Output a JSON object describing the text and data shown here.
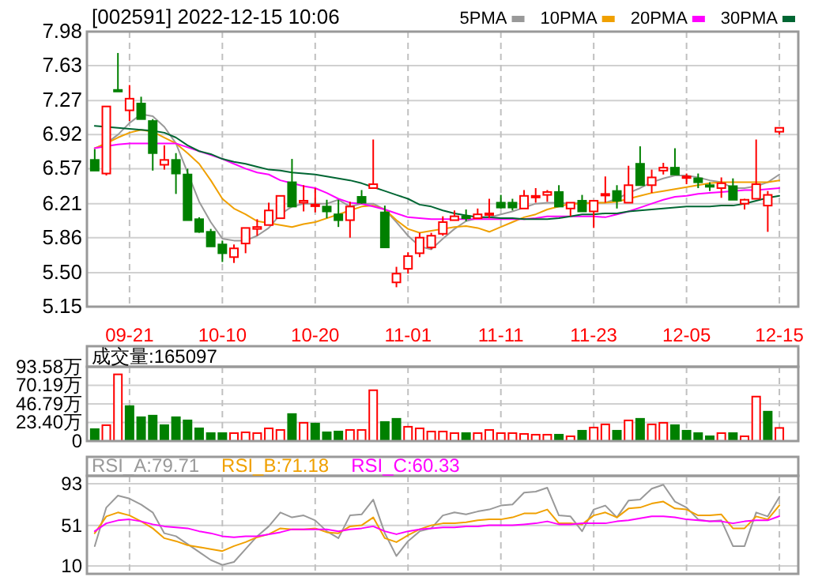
{
  "chart_data": [
    {
      "type": "candlestick",
      "title": "[002591] 2022-12-15 10:06",
      "categories": [
        null,
        null,
        null,
        "09-21",
        null,
        null,
        null,
        null,
        null,
        null,
        null,
        "10-10",
        null,
        null,
        null,
        null,
        null,
        null,
        null,
        "10-20",
        null,
        null,
        null,
        null,
        null,
        null,
        null,
        "11-01",
        null,
        null,
        null,
        null,
        null,
        null,
        null,
        "11-11",
        null,
        null,
        null,
        null,
        null,
        null,
        null,
        "11-23",
        null,
        null,
        null,
        null,
        null,
        null,
        null,
        "12-05",
        null,
        null,
        null,
        null,
        null,
        null,
        null,
        "12-15"
      ],
      "ohlc": [
        [
          6.66,
          6.77,
          6.55,
          6.55
        ],
        [
          6.52,
          7.21,
          6.5,
          7.21
        ],
        [
          7.38,
          7.76,
          7.37,
          7.37
        ],
        [
          7.17,
          7.43,
          7.06,
          7.29
        ],
        [
          7.24,
          7.31,
          7.08,
          7.08
        ],
        [
          7.06,
          7.08,
          6.55,
          6.73
        ],
        [
          6.61,
          6.81,
          6.56,
          6.66
        ],
        [
          6.66,
          6.73,
          6.31,
          6.52
        ],
        [
          6.51,
          6.57,
          6.04,
          6.04
        ],
        [
          6.05,
          6.07,
          5.91,
          5.92
        ],
        [
          5.92,
          5.95,
          5.77,
          5.77
        ],
        [
          5.79,
          5.83,
          5.61,
          5.7
        ],
        [
          5.66,
          5.79,
          5.6,
          5.75
        ],
        [
          5.8,
          5.96,
          5.7,
          5.96
        ],
        [
          5.95,
          6.05,
          5.88,
          5.97
        ],
        [
          5.99,
          6.22,
          5.99,
          6.14
        ],
        [
          6.06,
          6.29,
          6.06,
          6.29
        ],
        [
          6.43,
          6.67,
          6.18,
          6.18
        ],
        [
          6.22,
          6.4,
          6.13,
          6.24
        ],
        [
          6.19,
          6.37,
          6.12,
          6.2
        ],
        [
          6.18,
          6.25,
          6.06,
          6.13
        ],
        [
          6.1,
          6.25,
          5.97,
          6.04
        ],
        [
          6.04,
          6.23,
          5.86,
          6.18
        ],
        [
          6.28,
          6.35,
          6.21,
          6.22
        ],
        [
          6.37,
          6.87,
          6.37,
          6.41
        ],
        [
          6.12,
          6.19,
          5.76,
          5.76
        ],
        [
          5.4,
          5.56,
          5.35,
          5.49
        ],
        [
          5.54,
          5.71,
          5.49,
          5.67
        ],
        [
          5.7,
          5.91,
          5.66,
          5.86
        ],
        [
          5.76,
          5.91,
          5.74,
          5.88
        ],
        [
          5.9,
          6.08,
          5.88,
          6.02
        ],
        [
          6.04,
          6.14,
          6.04,
          6.08
        ],
        [
          6.08,
          6.15,
          6.03,
          6.06
        ],
        [
          6.06,
          6.16,
          6.06,
          6.1
        ],
        [
          6.1,
          6.26,
          6.06,
          6.11
        ],
        [
          6.22,
          6.3,
          6.16,
          6.17
        ],
        [
          6.22,
          6.26,
          6.14,
          6.17
        ],
        [
          6.16,
          6.35,
          6.16,
          6.29
        ],
        [
          6.28,
          6.37,
          6.22,
          6.29
        ],
        [
          6.3,
          6.35,
          6.23,
          6.33
        ],
        [
          6.33,
          6.4,
          6.18,
          6.18
        ],
        [
          6.16,
          6.22,
          6.08,
          6.22
        ],
        [
          6.24,
          6.3,
          6.13,
          6.13
        ],
        [
          6.13,
          6.24,
          5.96,
          6.24
        ],
        [
          6.3,
          6.49,
          6.22,
          6.31
        ],
        [
          6.34,
          6.4,
          6.16,
          6.24
        ],
        [
          6.22,
          6.6,
          6.22,
          6.4
        ],
        [
          6.62,
          6.8,
          6.4,
          6.4
        ],
        [
          6.4,
          6.56,
          6.32,
          6.48
        ],
        [
          6.55,
          6.63,
          6.51,
          6.58
        ],
        [
          6.58,
          6.78,
          6.51,
          6.51
        ],
        [
          6.48,
          6.52,
          6.41,
          6.49
        ],
        [
          6.47,
          6.52,
          6.37,
          6.43
        ],
        [
          6.4,
          6.43,
          6.34,
          6.39
        ],
        [
          6.37,
          6.48,
          6.27,
          6.42
        ],
        [
          6.39,
          6.47,
          6.25,
          6.25
        ],
        [
          6.21,
          6.26,
          6.15,
          6.25
        ],
        [
          6.26,
          6.87,
          6.26,
          6.41
        ],
        [
          6.19,
          6.34,
          5.92,
          6.3
        ],
        [
          6.95,
          6.99,
          6.92,
          6.99
        ]
      ],
      "series": [
        {
          "name": "5PMA",
          "color": "#999999",
          "type": "line",
          "values": [
            6.78,
            6.83,
            6.92,
            7.04,
            7.13,
            7.11,
            7.0,
            6.83,
            6.53,
            6.23,
            6.02,
            5.85,
            5.83,
            5.83,
            5.88,
            5.96,
            6.1,
            6.18,
            6.21,
            6.21,
            6.21,
            6.25,
            6.18,
            6.21,
            6.21,
            6.15,
            6.02,
            5.88,
            5.77,
            5.74,
            5.85,
            5.95,
            6.03,
            6.06,
            6.07,
            6.1,
            6.13,
            6.17,
            6.21,
            6.22,
            6.22,
            6.21,
            6.22,
            6.22,
            6.22,
            6.26,
            6.32,
            6.37,
            6.43,
            6.47,
            6.5,
            6.5,
            6.48,
            6.45,
            6.43,
            6.37,
            6.37,
            6.39,
            6.43,
            6.51
          ]
        },
        {
          "name": "10PMA",
          "color": "#f0a000",
          "type": "line",
          "values": [
            6.78,
            6.83,
            6.89,
            6.94,
            6.97,
            6.95,
            6.89,
            6.83,
            6.73,
            6.62,
            6.45,
            6.26,
            6.16,
            6.1,
            6.03,
            6.01,
            5.99,
            5.97,
            6.0,
            6.02,
            6.06,
            6.1,
            6.14,
            6.18,
            6.19,
            6.15,
            6.04,
            5.95,
            5.91,
            5.93,
            5.95,
            5.97,
            5.98,
            5.96,
            5.92,
            5.97,
            6.02,
            6.07,
            6.1,
            6.15,
            6.18,
            6.21,
            6.21,
            6.22,
            6.22,
            6.23,
            6.26,
            6.29,
            6.32,
            6.34,
            6.36,
            6.38,
            6.4,
            6.42,
            6.43,
            6.43,
            6.43,
            6.43,
            6.43,
            6.45
          ]
        },
        {
          "name": "20PMA",
          "color": "#ff00ff",
          "type": "line",
          "values": [
            6.78,
            6.8,
            6.82,
            6.83,
            6.83,
            6.83,
            6.83,
            6.83,
            6.79,
            6.75,
            6.71,
            6.67,
            6.62,
            6.57,
            6.53,
            6.51,
            6.45,
            6.42,
            6.39,
            6.37,
            6.32,
            6.26,
            6.22,
            6.21,
            6.18,
            6.15,
            6.11,
            6.07,
            6.06,
            6.05,
            6.05,
            6.05,
            6.05,
            6.05,
            6.05,
            6.05,
            6.05,
            6.05,
            6.06,
            6.08,
            6.08,
            6.08,
            6.08,
            6.08,
            6.07,
            6.1,
            6.13,
            6.17,
            6.21,
            6.25,
            6.28,
            6.29,
            6.31,
            6.32,
            6.33,
            6.34,
            6.35,
            6.35,
            6.36,
            6.37
          ]
        },
        {
          "name": "30PMA",
          "color": "#006633",
          "type": "line",
          "values": [
            7.01,
            7.0,
            6.99,
            6.98,
            6.97,
            6.96,
            6.94,
            6.89,
            6.81,
            6.75,
            6.72,
            6.67,
            6.64,
            6.62,
            6.59,
            6.56,
            6.55,
            6.53,
            6.52,
            6.51,
            6.49,
            6.47,
            6.45,
            6.42,
            6.38,
            6.34,
            6.3,
            6.26,
            6.2,
            6.18,
            6.14,
            6.11,
            6.09,
            6.07,
            6.07,
            6.06,
            6.06,
            6.05,
            6.05,
            6.05,
            6.06,
            6.08,
            6.1,
            6.1,
            6.11,
            6.11,
            6.13,
            6.14,
            6.15,
            6.16,
            6.17,
            6.18,
            6.18,
            6.18,
            6.19,
            6.19,
            6.21,
            6.24,
            6.27,
            6.29
          ]
        }
      ],
      "ylim": [
        5.15,
        7.98
      ],
      "yticks": [
        {
          "value": 5.15,
          "label": "5.15"
        },
        {
          "value": 5.5,
          "label": "5.50"
        },
        {
          "value": 5.86,
          "label": "5.86"
        },
        {
          "value": 6.21,
          "label": "6.21"
        },
        {
          "value": 6.57,
          "label": "6.57"
        },
        {
          "value": 6.92,
          "label": "6.92"
        },
        {
          "value": 7.27,
          "label": "7.27"
        },
        {
          "value": 7.63,
          "label": "7.63"
        },
        {
          "value": 7.98,
          "label": "7.98"
        }
      ],
      "grid": true,
      "legend": "top right"
    },
    {
      "type": "bar",
      "title": "成交量:165097",
      "categories": [
        null,
        null,
        null,
        null,
        null,
        null,
        null,
        null,
        null,
        null,
        null,
        null,
        null,
        null,
        null,
        null,
        null,
        null,
        null,
        null,
        null,
        null,
        null,
        null,
        null,
        null,
        null,
        null,
        null,
        null,
        null,
        null,
        null,
        null,
        null,
        null,
        null,
        null,
        null,
        null,
        null,
        null,
        null,
        null,
        null,
        null,
        null,
        null,
        null,
        null,
        null,
        null,
        null,
        null,
        null,
        null,
        null,
        null,
        null,
        null
      ],
      "values": [
        15,
        20,
        84,
        44,
        30,
        32,
        20,
        30,
        26,
        16,
        10,
        10,
        10,
        11,
        10,
        16,
        14,
        34,
        23,
        22,
        11,
        12,
        14,
        14,
        64,
        24,
        28,
        18,
        16,
        12,
        12,
        10,
        10,
        10,
        14,
        10,
        10,
        9,
        8,
        8,
        8,
        6,
        13,
        17,
        21,
        13,
        26,
        28,
        21,
        23,
        20,
        13,
        10,
        6,
        10,
        10,
        6,
        56,
        37,
        16.51
      ],
      "colors": [
        "#008000",
        "#ff0000",
        "#ff0000",
        "#008000",
        "#008000",
        "#008000",
        "#008000",
        "#008000",
        "#008000",
        "#008000",
        "#008000",
        "#008000",
        "#ff0000",
        "#ff0000",
        "#ff0000",
        "#ff0000",
        "#ff0000",
        "#008000",
        "#ff0000",
        "#008000",
        "#008000",
        "#008000",
        "#ff0000",
        "#ff0000",
        "#ff0000",
        "#008000",
        "#008000",
        "#ff0000",
        "#ff0000",
        "#ff0000",
        "#ff0000",
        "#ff0000",
        "#008000",
        "#ff0000",
        "#ff0000",
        "#ff0000",
        "#ff0000",
        "#ff0000",
        "#ff0000",
        "#ff0000",
        "#008000",
        "#ff0000",
        "#008000",
        "#ff0000",
        "#ff0000",
        "#008000",
        "#ff0000",
        "#008000",
        "#ff0000",
        "#ff0000",
        "#008000",
        "#008000",
        "#008000",
        "#008000",
        "#ff0000",
        "#008000",
        "#ff0000",
        "#ff0000",
        "#008000",
        "#ff0000"
      ],
      "ylim": [
        0,
        93.58
      ],
      "yticks": [
        {
          "value": 0,
          "label": "0"
        },
        {
          "value": 23.4,
          "label": "23.40万"
        },
        {
          "value": 46.79,
          "label": "46.79万"
        },
        {
          "value": 70.19,
          "label": "70.19万"
        },
        {
          "value": 93.58,
          "label": "93.58万"
        }
      ],
      "grid": true,
      "tick_labels": "y"
    },
    {
      "type": "line",
      "categories": [
        null,
        null,
        null,
        null,
        null,
        null,
        null,
        null,
        null,
        null,
        null,
        null,
        null,
        null,
        null,
        null,
        null,
        null,
        null,
        null,
        null,
        null,
        null,
        null,
        null,
        null,
        null,
        null,
        null,
        null,
        null,
        null,
        null,
        null,
        null,
        null,
        null,
        null,
        null,
        null,
        null,
        null,
        null,
        null,
        null,
        null,
        null,
        null,
        null,
        null,
        null,
        null,
        null,
        null,
        null,
        null,
        null,
        null,
        null,
        null
      ],
      "series": [
        {
          "name": "RSI_A:79.71",
          "color": "#999999",
          "values": [
            30,
            69,
            81,
            78,
            72,
            64,
            43,
            40,
            32,
            24,
            16,
            11,
            14,
            27,
            40,
            50,
            64,
            59,
            61,
            56,
            45,
            38,
            61,
            62,
            77,
            43,
            20,
            35,
            45,
            48,
            61,
            64,
            62,
            65,
            67,
            71,
            72,
            84,
            85,
            89,
            61,
            60,
            45,
            67,
            71,
            59,
            76,
            77,
            88,
            92,
            75,
            69,
            57,
            55,
            56,
            30,
            30,
            64,
            60,
            79.71
          ]
        },
        {
          "name": "RSI_B:71.18",
          "color": "#f0a000",
          "values": [
            43,
            60,
            64,
            61,
            55,
            48,
            38,
            35,
            31,
            29,
            27,
            25,
            30,
            34,
            39,
            42,
            48,
            47,
            47,
            48,
            44,
            43,
            50,
            51,
            59,
            38,
            34,
            41,
            47,
            51,
            53,
            53,
            54,
            56,
            57,
            57,
            59,
            63,
            63,
            67,
            53,
            53,
            52,
            61,
            64,
            59,
            68,
            69,
            73,
            75,
            68,
            67,
            61,
            61,
            62,
            48,
            48,
            60,
            57,
            71.18
          ]
        },
        {
          "name": "RSI_C:60.33",
          "color": "#ff00ff",
          "values": [
            45,
            53,
            56,
            57,
            55,
            52,
            50,
            49,
            48,
            45,
            43,
            40,
            39,
            40,
            40,
            42,
            44,
            47,
            47,
            47,
            47,
            45,
            47,
            48,
            50,
            45,
            42,
            45,
            47,
            48,
            49,
            49,
            50,
            50,
            51,
            51,
            51,
            52,
            53,
            55,
            52,
            52,
            53,
            53,
            53,
            55,
            56,
            58,
            60,
            60,
            59,
            57,
            56,
            55,
            55,
            53,
            55,
            56,
            56,
            60.33
          ]
        }
      ],
      "ylim": [
        2,
        101
      ],
      "yticks": [
        {
          "value": 10,
          "label": "10"
        },
        {
          "value": 51,
          "label": "51"
        },
        {
          "value": 93,
          "label": "93"
        }
      ],
      "grid": true,
      "tick_labels": "y",
      "legend": "top left"
    }
  ]
}
